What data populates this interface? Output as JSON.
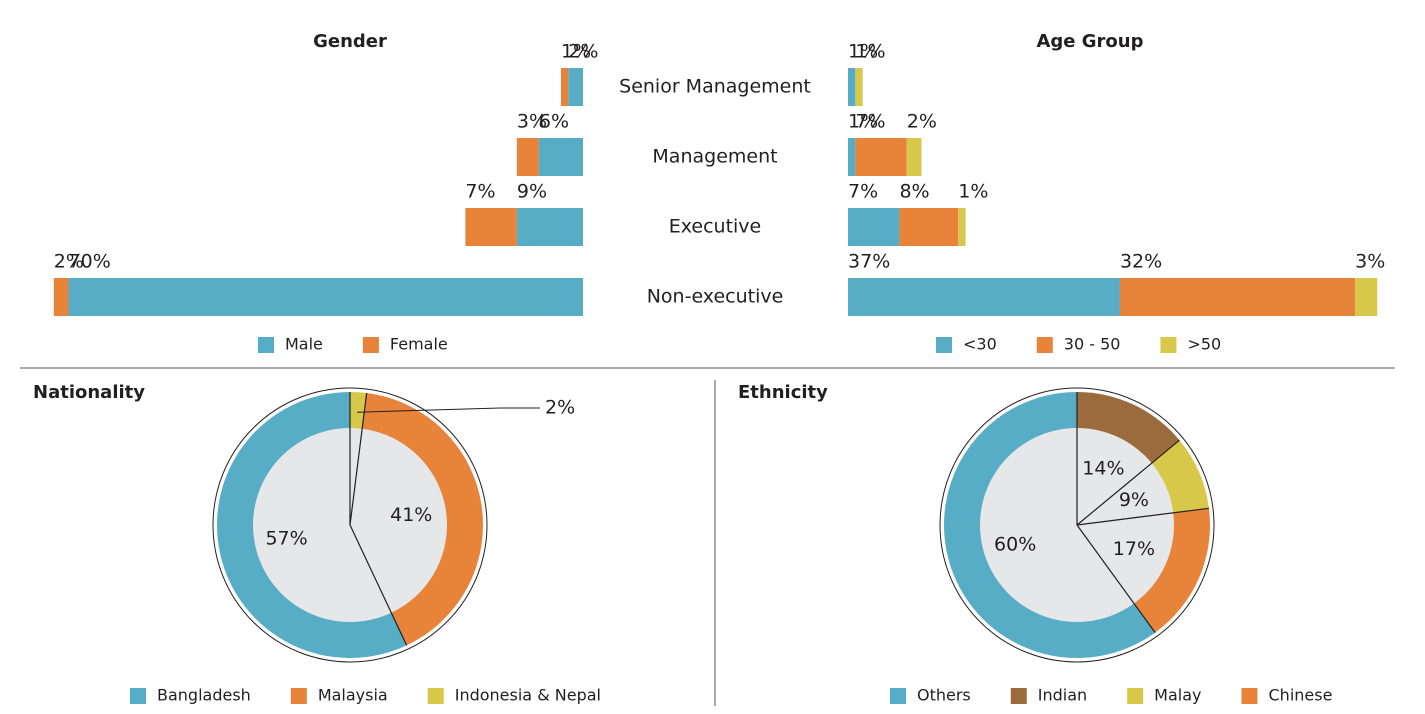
{
  "chart_data": [
    {
      "type": "bar",
      "title": "Gender",
      "categories": [
        "Senior Management",
        "Management",
        "Executive",
        "Non-executive"
      ],
      "series": [
        {
          "name": "Male",
          "color": "#56adc5",
          "values": [
            2,
            6,
            9,
            70
          ]
        },
        {
          "name": "Female",
          "color": "#e8833a",
          "values": [
            1,
            3,
            7,
            2
          ]
        }
      ]
    },
    {
      "type": "bar",
      "title": "Age Group",
      "series": [
        {
          "name": "<30",
          "color": "#56adc5",
          "values": [
            1,
            1,
            7,
            37
          ]
        },
        {
          "name": "30 - 50",
          "color": "#e8833a",
          "values": [
            null,
            7,
            8,
            32
          ]
        },
        {
          "name": ">50",
          "color": "#d8c84a",
          "values": [
            1,
            2,
            1,
            3
          ]
        }
      ]
    },
    {
      "type": "pie",
      "title": "Nationality",
      "categories": [
        "Bangladesh",
        "Malaysia",
        "Indonesia & Nepal"
      ],
      "values": [
        57,
        41,
        2
      ],
      "colors": [
        "#56adc5",
        "#e8833a",
        "#d8c84a"
      ]
    },
    {
      "type": "pie",
      "title": "Ethnicity",
      "categories": [
        "Others",
        "Indian",
        "Malay",
        "Chinese"
      ],
      "values": [
        60,
        14,
        9,
        17
      ],
      "colors": [
        "#56adc5",
        "#9b6b3e",
        "#d8c84a",
        "#e8833a"
      ]
    }
  ]
}
